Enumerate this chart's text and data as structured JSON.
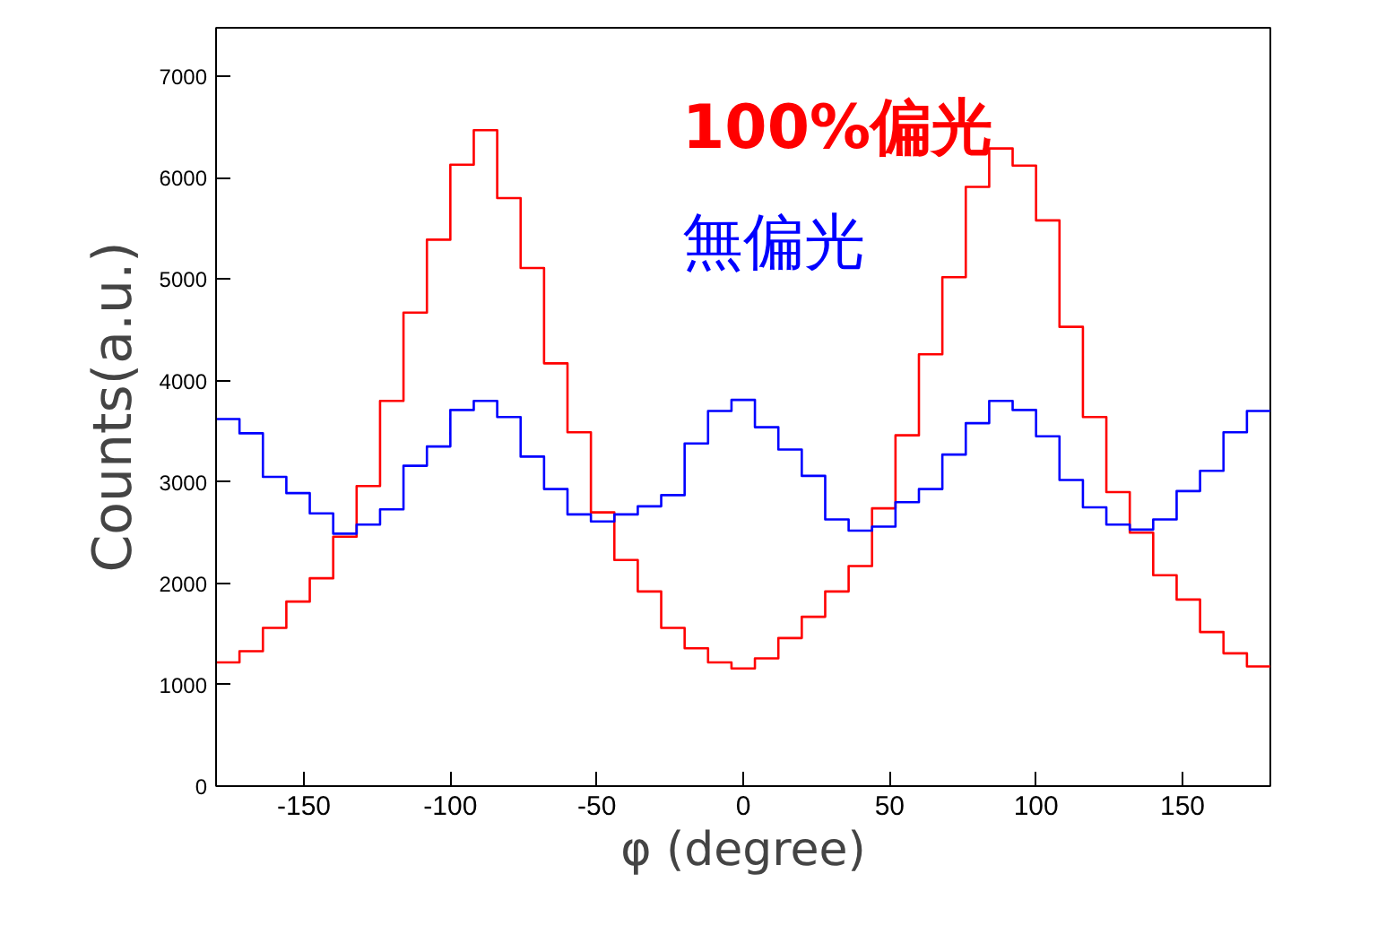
{
  "chart_data": {
    "type": "histogram",
    "xlabel": "φ (degree)",
    "ylabel": "Counts(a.u.)",
    "bins": [
      -180,
      -172,
      -164,
      -156,
      -148,
      -140,
      -132,
      -124,
      -116,
      -108,
      -100,
      -92,
      -84,
      -76,
      -68,
      -60,
      -52,
      -44,
      -36,
      -28,
      -20,
      -12,
      -4,
      4,
      12,
      20,
      28,
      36,
      44,
      52,
      60,
      68,
      76,
      84,
      92,
      100,
      108,
      116,
      124,
      132,
      140,
      148,
      156,
      164,
      172,
      180
    ],
    "series": [
      {
        "name": "100%偏光",
        "color": "#ff0000",
        "values": [
          1220,
          1330,
          1560,
          1820,
          2050,
          2460,
          2960,
          3800,
          4670,
          5390,
          6130,
          6470,
          5800,
          5110,
          4170,
          3490,
          2700,
          2230,
          1920,
          1560,
          1360,
          1220,
          1160,
          1260,
          1460,
          1670,
          1920,
          2170,
          2740,
          3460,
          4260,
          5020,
          5910,
          6290,
          6120,
          5580,
          4530,
          3640,
          2900,
          2500,
          2080,
          1840,
          1520,
          1310,
          1180
        ]
      },
      {
        "name": "無偏光",
        "color": "#0000ff",
        "values": [
          3620,
          3480,
          3050,
          2890,
          2690,
          2490,
          2580,
          2730,
          3160,
          3350,
          3710,
          3800,
          3640,
          3250,
          2930,
          2680,
          2610,
          2680,
          2760,
          2870,
          3380,
          3700,
          3810,
          3540,
          3320,
          3060,
          2630,
          2520,
          2560,
          2800,
          2930,
          3270,
          3580,
          3800,
          3710,
          3450,
          3020,
          2750,
          2580,
          2530,
          2630,
          2910,
          3110,
          3490,
          3700
        ]
      }
    ],
    "xlim": [
      -180,
      180
    ],
    "ylim": [
      0,
      7480
    ],
    "xticks": [
      -150,
      -100,
      -50,
      0,
      50,
      100,
      150
    ],
    "yticks": [
      0,
      1000,
      2000,
      3000,
      4000,
      5000,
      6000,
      7000
    ],
    "grid": false
  }
}
